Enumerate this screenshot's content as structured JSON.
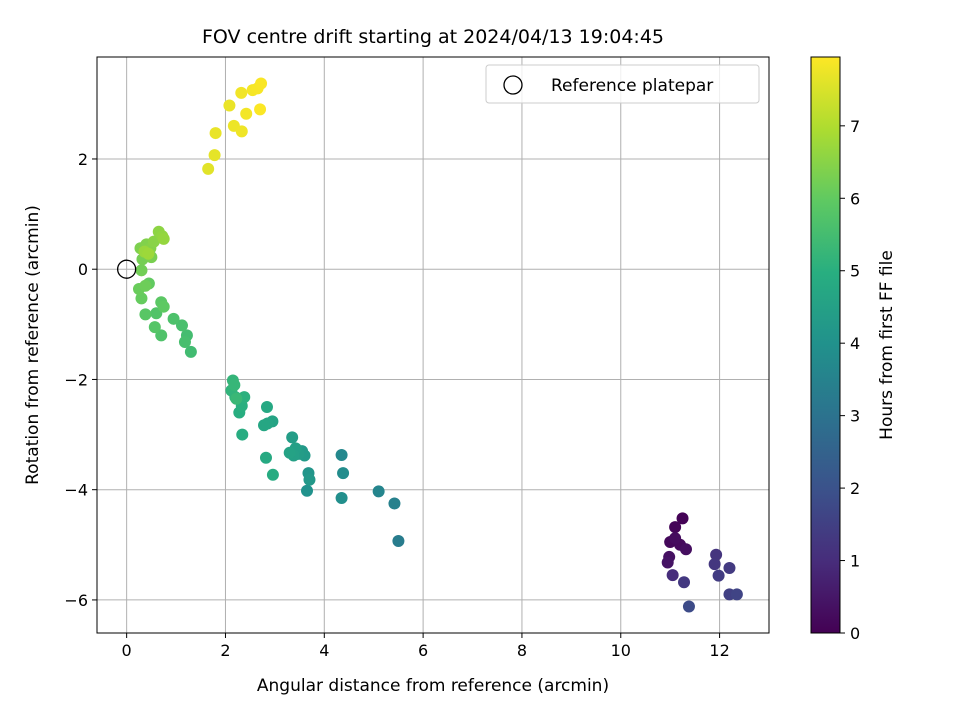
{
  "chart_data": {
    "type": "scatter",
    "title": "FOV centre drift starting at 2024/04/13 19:04:45",
    "xlabel": "Angular distance from reference (arcmin)",
    "ylabel": "Rotation from reference (arcmin)",
    "xlim": [
      -0.6,
      13.0
    ],
    "ylim": [
      -6.6,
      3.85
    ],
    "xticks": [
      0,
      2,
      4,
      6,
      8,
      10,
      12
    ],
    "yticks": [
      -6,
      -4,
      -2,
      0,
      2
    ],
    "grid": true,
    "legend": {
      "placement": "top-right",
      "entries": [
        "Reference platepar"
      ]
    },
    "reference_point": {
      "x": 0,
      "y": 0
    },
    "colorbar": {
      "label": "Hours from first FF file",
      "min": 0,
      "max": 7.95,
      "ticks": [
        0,
        1,
        2,
        3,
        4,
        5,
        6,
        7
      ],
      "colormap": "viridis"
    },
    "points": [
      {
        "x": 11.25,
        "y": -4.52,
        "c": 0.05
      },
      {
        "x": 11.1,
        "y": -4.68,
        "c": 0.1
      },
      {
        "x": 11.0,
        "y": -4.95,
        "c": 0.15
      },
      {
        "x": 11.2,
        "y": -5.0,
        "c": 0.2
      },
      {
        "x": 11.1,
        "y": -4.88,
        "c": 0.25
      },
      {
        "x": 11.32,
        "y": -5.08,
        "c": 0.3
      },
      {
        "x": 10.98,
        "y": -5.22,
        "c": 0.35
      },
      {
        "x": 10.95,
        "y": -5.32,
        "c": 0.4
      },
      {
        "x": 11.05,
        "y": -5.55,
        "c": 1.0
      },
      {
        "x": 11.28,
        "y": -5.68,
        "c": 1.3
      },
      {
        "x": 11.38,
        "y": -6.12,
        "c": 1.8
      },
      {
        "x": 11.93,
        "y": -5.18,
        "c": 1.2
      },
      {
        "x": 11.9,
        "y": -5.35,
        "c": 1.25
      },
      {
        "x": 12.2,
        "y": -5.42,
        "c": 1.35
      },
      {
        "x": 11.98,
        "y": -5.56,
        "c": 1.4
      },
      {
        "x": 12.2,
        "y": -5.9,
        "c": 1.5
      },
      {
        "x": 12.35,
        "y": -5.9,
        "c": 1.6
      },
      {
        "x": 5.5,
        "y": -4.93,
        "c": 3.3
      },
      {
        "x": 5.42,
        "y": -4.25,
        "c": 3.45
      },
      {
        "x": 5.1,
        "y": -4.03,
        "c": 3.6
      },
      {
        "x": 4.35,
        "y": -3.37,
        "c": 3.7
      },
      {
        "x": 4.38,
        "y": -3.7,
        "c": 3.8
      },
      {
        "x": 4.35,
        "y": -4.15,
        "c": 3.9
      },
      {
        "x": 3.65,
        "y": -4.02,
        "c": 4.0
      },
      {
        "x": 3.68,
        "y": -3.7,
        "c": 4.1
      },
      {
        "x": 3.7,
        "y": -3.82,
        "c": 4.2
      },
      {
        "x": 3.55,
        "y": -3.3,
        "c": 4.25
      },
      {
        "x": 3.6,
        "y": -3.38,
        "c": 4.3
      },
      {
        "x": 3.48,
        "y": -3.35,
        "c": 4.35
      },
      {
        "x": 3.35,
        "y": -3.05,
        "c": 4.4
      },
      {
        "x": 3.42,
        "y": -3.25,
        "c": 4.45
      },
      {
        "x": 3.38,
        "y": -3.38,
        "c": 4.5
      },
      {
        "x": 3.3,
        "y": -3.33,
        "c": 4.55
      },
      {
        "x": 2.95,
        "y": -2.76,
        "c": 4.6
      },
      {
        "x": 2.85,
        "y": -2.8,
        "c": 4.65
      },
      {
        "x": 2.78,
        "y": -2.83,
        "c": 4.7
      },
      {
        "x": 2.84,
        "y": -2.5,
        "c": 4.75
      },
      {
        "x": 2.82,
        "y": -3.42,
        "c": 4.8
      },
      {
        "x": 2.96,
        "y": -3.73,
        "c": 4.85
      },
      {
        "x": 2.34,
        "y": -3.0,
        "c": 4.9
      },
      {
        "x": 2.28,
        "y": -2.6,
        "c": 4.95
      },
      {
        "x": 2.33,
        "y": -2.48,
        "c": 5.0
      },
      {
        "x": 2.38,
        "y": -2.32,
        "c": 5.05
      },
      {
        "x": 2.2,
        "y": -2.32,
        "c": 5.1
      },
      {
        "x": 2.12,
        "y": -2.2,
        "c": 5.15
      },
      {
        "x": 2.15,
        "y": -2.02,
        "c": 5.2
      },
      {
        "x": 2.18,
        "y": -2.1,
        "c": 5.25
      },
      {
        "x": 2.22,
        "y": -2.35,
        "c": 5.3
      },
      {
        "x": 1.3,
        "y": -1.5,
        "c": 5.45
      },
      {
        "x": 1.22,
        "y": -1.2,
        "c": 5.5
      },
      {
        "x": 1.18,
        "y": -1.32,
        "c": 5.55
      },
      {
        "x": 1.12,
        "y": -1.02,
        "c": 5.6
      },
      {
        "x": 0.95,
        "y": -0.9,
        "c": 5.65
      },
      {
        "x": 0.7,
        "y": -1.2,
        "c": 5.7
      },
      {
        "x": 0.6,
        "y": -0.8,
        "c": 5.75
      },
      {
        "x": 0.57,
        "y": -1.05,
        "c": 5.8
      },
      {
        "x": 0.38,
        "y": -0.82,
        "c": 5.85
      },
      {
        "x": 0.7,
        "y": -0.6,
        "c": 5.9
      },
      {
        "x": 0.75,
        "y": -0.68,
        "c": 5.95
      },
      {
        "x": 0.45,
        "y": -0.26,
        "c": 6.0
      },
      {
        "x": 0.3,
        "y": -0.53,
        "c": 6.05
      },
      {
        "x": 0.25,
        "y": -0.36,
        "c": 6.1
      },
      {
        "x": 0.38,
        "y": -0.3,
        "c": 6.15
      },
      {
        "x": 0.3,
        "y": -0.02,
        "c": 6.2
      },
      {
        "x": 0.32,
        "y": 0.18,
        "c": 6.25
      },
      {
        "x": 0.5,
        "y": 0.22,
        "c": 6.3
      },
      {
        "x": 0.28,
        "y": 0.38,
        "c": 6.35
      },
      {
        "x": 0.4,
        "y": 0.45,
        "c": 6.4
      },
      {
        "x": 0.48,
        "y": 0.38,
        "c": 6.45
      },
      {
        "x": 0.55,
        "y": 0.5,
        "c": 6.5
      },
      {
        "x": 0.65,
        "y": 0.68,
        "c": 6.55
      },
      {
        "x": 0.72,
        "y": 0.6,
        "c": 6.6
      },
      {
        "x": 0.75,
        "y": 0.55,
        "c": 6.65
      },
      {
        "x": 0.36,
        "y": 0.32,
        "c": 6.7
      },
      {
        "x": 0.44,
        "y": 0.28,
        "c": 6.75
      },
      {
        "x": 1.65,
        "y": 1.82,
        "c": 7.6
      },
      {
        "x": 1.78,
        "y": 2.07,
        "c": 7.65
      },
      {
        "x": 1.8,
        "y": 2.47,
        "c": 7.7
      },
      {
        "x": 2.08,
        "y": 2.97,
        "c": 7.72
      },
      {
        "x": 2.17,
        "y": 2.6,
        "c": 7.75
      },
      {
        "x": 2.33,
        "y": 2.5,
        "c": 7.78
      },
      {
        "x": 2.32,
        "y": 3.2,
        "c": 7.8
      },
      {
        "x": 2.42,
        "y": 2.82,
        "c": 7.82
      },
      {
        "x": 2.55,
        "y": 3.25,
        "c": 7.85
      },
      {
        "x": 2.65,
        "y": 3.28,
        "c": 7.88
      },
      {
        "x": 2.72,
        "y": 3.37,
        "c": 7.9
      },
      {
        "x": 2.7,
        "y": 2.9,
        "c": 7.93
      }
    ]
  }
}
